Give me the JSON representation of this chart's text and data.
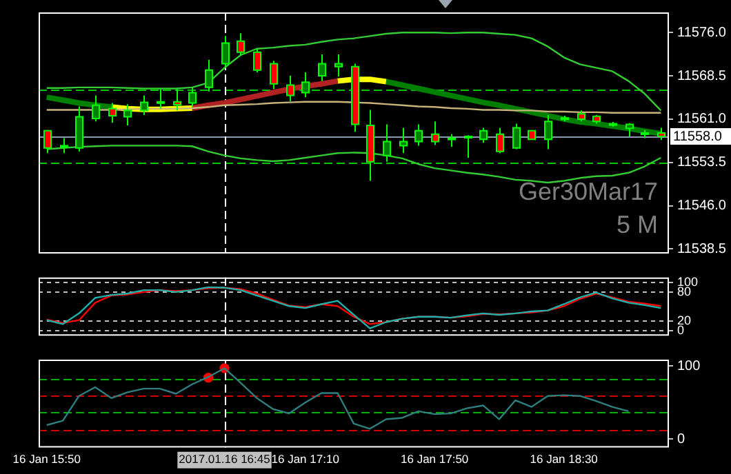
{
  "chart_data": [
    {
      "type": "candlestick",
      "categories": [
        "16 Jan 15:50",
        null,
        null,
        null,
        null,
        null,
        null,
        null,
        null,
        null,
        null,
        "2017.01.16 16:45",
        null,
        null,
        null,
        null,
        "16 Jan 17:10",
        null,
        null,
        null,
        null,
        null,
        null,
        null,
        "16 Jan 17:50",
        null,
        null,
        null,
        null,
        null,
        null,
        null,
        "16 Jan 18:30",
        null,
        null,
        null,
        null,
        null,
        null
      ],
      "ylim": [
        11537.7,
        11579.5
      ],
      "yticks": [
        {
          "value": 11538.5,
          "label": "11538.5"
        },
        {
          "value": 11546,
          "label": "11546.0"
        },
        {
          "value": 11553.5,
          "label": "11553.5"
        },
        {
          "value": 11561,
          "label": "11561.0"
        },
        {
          "value": 11568.5,
          "label": "11568.5"
        },
        {
          "value": 11576,
          "label": "11576.0"
        }
      ],
      "tick_labels": "y",
      "annotations": [
        "Ger30Mar17",
        "5 M"
      ],
      "ref_lines": [
        {
          "axis": "y",
          "value": 11558.0,
          "label": "11558.0",
          "color": "#8a9bb0",
          "line_style": "solid"
        },
        {
          "axis": "y",
          "value": 11566.2,
          "color": "#00c800",
          "line_style": "dashed"
        },
        {
          "axis": "y",
          "value": 11553.5,
          "color": "#00c800",
          "line_style": "dashed"
        },
        {
          "axis": "x",
          "value": "2017.01.16 16:45",
          "color": "#ffffff",
          "line_style": "dashed"
        }
      ],
      "series": [
        {
          "color": "#00ff00",
          "colors": [
            "#ff0000",
            "#008000",
            "#008000",
            "#008000",
            "#ff0000",
            "#008000",
            "#008000",
            "#008000",
            "#ff0000",
            "#008000",
            "#008000",
            "#008000",
            "#ff0000",
            "#ff0000",
            "#ff0000",
            "#ff0000",
            "#008000",
            "#008000",
            "#008000",
            "#ff0000",
            "#ff0000",
            "#008000",
            "#008000",
            "#008000",
            "#ff0000",
            "#008000",
            "#008000",
            "#008000",
            "#ff0000",
            "#008000",
            "#ff0000",
            "#008000",
            "#008000",
            "#ff0000",
            "#ff0000",
            "#ff0000",
            "#008000",
            "#008000",
            "#ff0000"
          ],
          "ohlc": [
            [
              11559.0,
              11559.1,
              11555.1,
              11556.0
            ],
            [
              11556.4,
              11557.7,
              11555.1,
              11556.4
            ],
            [
              11556.0,
              11563.2,
              11555.4,
              11561.4
            ],
            [
              11561.1,
              11565.1,
              11560.6,
              11563.4
            ],
            [
              11562.8,
              11563.8,
              11560.4,
              11561.6
            ],
            [
              11561.4,
              11563.6,
              11559.9,
              11562.5
            ],
            [
              11562.5,
              11565.1,
              11561.7,
              11563.9
            ],
            [
              11563.9,
              11566.2,
              11562.8,
              11564.0
            ],
            [
              11564.0,
              11566.2,
              11562.5,
              11563.5
            ],
            [
              11563.8,
              11566.5,
              11563.2,
              11565.6
            ],
            [
              11566.5,
              11571.3,
              11565.8,
              11569.5
            ],
            [
              11570.6,
              11575.4,
              11569.9,
              11574.2
            ],
            [
              11574.5,
              11575.9,
              11572.1,
              11572.6
            ],
            [
              11572.6,
              11573.2,
              11569.1,
              11569.5
            ],
            [
              11570.6,
              11571.1,
              11566.2,
              11567.1
            ],
            [
              11566.9,
              11568.5,
              11564.1,
              11565.1
            ],
            [
              11565.6,
              11569.1,
              11564.8,
              11567.4
            ],
            [
              11568.5,
              11572.2,
              11567.6,
              11570.6
            ],
            [
              11570.1,
              11572.2,
              11568.4,
              11570.6
            ],
            [
              11570.1,
              11570.6,
              11558.8,
              11560.1
            ],
            [
              11559.9,
              11562.6,
              11550.3,
              11553.6
            ],
            [
              11554.7,
              11560.1,
              11553.6,
              11557.1
            ],
            [
              11556.4,
              11559.5,
              11555.1,
              11557.1
            ],
            [
              11557.1,
              11560.1,
              11556.4,
              11559.0
            ],
            [
              11558.4,
              11560.6,
              11556.5,
              11557.1
            ],
            [
              11557.7,
              11558.4,
              11556.2,
              11557.7
            ],
            [
              11558.0,
              11558.2,
              11554.3,
              11558.0
            ],
            [
              11557.5,
              11559.5,
              11556.9,
              11559.0
            ],
            [
              11558.4,
              11559.5,
              11555.1,
              11555.4
            ],
            [
              11556.0,
              11560.2,
              11555.8,
              11559.5
            ],
            [
              11559.0,
              11559.1,
              11557.4,
              11557.5
            ],
            [
              11557.5,
              11561.7,
              11555.8,
              11560.6
            ],
            [
              11561.0,
              11561.6,
              11560.6,
              11561.2
            ],
            [
              11561.9,
              11562.5,
              11560.6,
              11561.0
            ],
            [
              11561.5,
              11561.7,
              11560.2,
              11560.6
            ],
            [
              11560.2,
              11560.5,
              11559.7,
              11560.0
            ],
            [
              11559.4,
              11560.3,
              11558.0,
              11560.1
            ],
            [
              11558.6,
              11559.1,
              11557.7,
              11558.6
            ],
            [
              11558.6,
              11559.5,
              11557.4,
              11558.0
            ]
          ]
        },
        {
          "type": "line",
          "color": "#33cc33",
          "values": [
            11566.4,
            11566.4,
            11566.5,
            11566.5,
            11566.5,
            11566.4,
            11566.3,
            11566.3,
            11566.3,
            11566.5,
            11567.3,
            11569.9,
            11572.1,
            11573.2,
            11573.4,
            11573.7,
            11573.9,
            11574.4,
            11574.8,
            11575.0,
            11575.4,
            11575.8,
            11576.0,
            11576.0,
            11576.0,
            11575.9,
            11576.0,
            11576.0,
            11575.8,
            11575.6,
            11575.0,
            11573.6,
            11571.7,
            11570.5,
            11569.9,
            11569.3,
            11567.6,
            11565.4,
            11562.5
          ]
        },
        {
          "type": "line",
          "color": "#33cc33",
          "values": [
            11555.8,
            11556.0,
            11556.2,
            11556.3,
            11556.4,
            11556.4,
            11556.4,
            11556.4,
            11556.4,
            11556.3,
            11555.4,
            11554.7,
            11554.2,
            11553.9,
            11553.7,
            11553.9,
            11554.3,
            11554.7,
            11555.1,
            11555.2,
            11555.1,
            11554.7,
            11554.2,
            11553.2,
            11552.5,
            11552.1,
            11551.7,
            11551.4,
            11551.0,
            11550.5,
            11550.3,
            11550.0,
            11550.3,
            11550.8,
            11551.1,
            11551.2,
            11551.7,
            11552.8,
            11554.3
          ]
        },
        {
          "type": "line",
          "color": "#c8b47a",
          "values": [
            11562.6,
            11562.6,
            11562.6,
            11562.6,
            11562.6,
            11562.7,
            11562.8,
            11562.8,
            11562.8,
            11562.9,
            11563.1,
            11563.4,
            11563.5,
            11563.6,
            11563.8,
            11563.9,
            11564.0,
            11564.0,
            11564.0,
            11563.9,
            11563.8,
            11563.6,
            11563.4,
            11563.2,
            11563.1,
            11562.9,
            11562.8,
            11562.6,
            11562.6,
            11562.5,
            11562.5,
            11562.3,
            11562.3,
            11562.2,
            11562.2,
            11562.1,
            11562.1,
            11562.1,
            11562.1
          ]
        },
        {
          "type": "line",
          "color": "#008000",
          "values": [
            11564.8,
            11564.3,
            11563.8,
            11563.4,
            11563.1,
            null,
            null,
            null,
            null,
            null,
            null,
            null,
            null,
            null,
            null,
            null,
            null,
            null,
            null,
            null,
            null,
            null,
            null,
            null,
            null,
            null,
            null,
            null,
            null,
            null,
            null,
            null,
            null,
            null,
            null,
            null,
            null,
            null,
            null
          ]
        },
        {
          "type": "line",
          "color": "#ffff00",
          "values": [
            null,
            null,
            null,
            null,
            11563.1,
            11562.8,
            11562.7,
            11562.7,
            11562.8,
            11562.9,
            null,
            null,
            null,
            null,
            null,
            null,
            null,
            null,
            null,
            null,
            null,
            null,
            null,
            null,
            null,
            null,
            null,
            null,
            null,
            null,
            null,
            null,
            null,
            null,
            null,
            null,
            null,
            null,
            null
          ]
        },
        {
          "type": "line",
          "color": "#b22222",
          "values": [
            null,
            null,
            null,
            null,
            null,
            null,
            null,
            null,
            null,
            11562.9,
            11563.4,
            11563.8,
            11564.4,
            11565.0,
            11565.6,
            11566.2,
            11566.7,
            11567.1,
            11567.6,
            null,
            null,
            null,
            null,
            null,
            null,
            null,
            null,
            null,
            null,
            null,
            null,
            null,
            null,
            null,
            null,
            null,
            null,
            null,
            null
          ]
        },
        {
          "type": "line",
          "color": "#ffff00",
          "values": [
            null,
            null,
            null,
            null,
            null,
            null,
            null,
            null,
            null,
            null,
            null,
            null,
            null,
            null,
            null,
            null,
            null,
            null,
            11567.6,
            11567.9,
            11567.9,
            11567.5,
            null,
            null,
            null,
            null,
            null,
            null,
            null,
            null,
            null,
            null,
            null,
            null,
            null,
            null,
            null,
            null,
            null
          ]
        },
        {
          "type": "line",
          "color": "#008000",
          "values": [
            null,
            null,
            null,
            null,
            null,
            null,
            null,
            null,
            null,
            null,
            null,
            null,
            null,
            null,
            null,
            null,
            null,
            null,
            null,
            null,
            null,
            11567.5,
            11566.9,
            11566.3,
            11565.7,
            11565.1,
            11564.5,
            11563.9,
            11563.4,
            11562.8,
            11562.2,
            11561.6,
            11561.0,
            11560.5,
            11560.2,
            11559.8,
            11559.4,
            11558.9,
            11558.5
          ]
        }
      ]
    },
    {
      "type": "line",
      "categories": [
        "16 Jan 15:50",
        null,
        null,
        null,
        null,
        null,
        null,
        null,
        null,
        null,
        null,
        "2017.01.16 16:45",
        null,
        null,
        null,
        null,
        "16 Jan 17:10",
        null,
        null,
        null,
        null,
        null,
        null,
        null,
        "16 Jan 17:50",
        null,
        null,
        null,
        null,
        null,
        null,
        null,
        "16 Jan 18:30",
        null,
        null,
        null,
        null,
        null,
        null
      ],
      "ylim": [
        -10,
        110
      ],
      "yticks": [
        0,
        20,
        80,
        100
      ],
      "grid": "y",
      "tick_labels": "y",
      "ref_lines": [
        {
          "axis": "x",
          "value": "2017.01.16 16:45",
          "color": "#ffffff",
          "line_style": "dashed"
        }
      ],
      "series": [
        {
          "color": "#20b2aa",
          "values": [
            22,
            14,
            36,
            68,
            74,
            77,
            84,
            84,
            80,
            84,
            90,
            89,
            84,
            73,
            62,
            51,
            47,
            55,
            62,
            33,
            5,
            18,
            25,
            29,
            29,
            27,
            32,
            36,
            33,
            36,
            40,
            42,
            55,
            69,
            79,
            67,
            58,
            53,
            47
          ]
        },
        {
          "color": "#ff0000",
          "values": [
            23,
            16,
            22,
            58,
            73,
            75,
            80,
            84,
            82,
            84,
            88,
            89,
            86,
            77,
            64,
            52,
            49,
            55,
            51,
            29,
            14,
            18,
            25,
            29,
            29,
            27,
            30,
            35,
            34,
            36,
            38,
            42,
            51,
            66,
            77,
            69,
            60,
            56,
            51
          ]
        }
      ]
    },
    {
      "type": "line",
      "categories": [
        "16 Jan 15:50",
        null,
        null,
        null,
        null,
        null,
        null,
        null,
        null,
        null,
        null,
        "2017.01.16 16:45",
        null,
        null,
        null,
        null,
        "16 Jan 17:10",
        null,
        null,
        null,
        null,
        null,
        null,
        null,
        "16 Jan 17:50",
        null,
        null,
        null,
        null,
        null,
        null,
        null,
        "16 Jan 18:30",
        null,
        null,
        null,
        null,
        null,
        null
      ],
      "ylim": [
        -11.8,
        108.8
      ],
      "yticks": [
        0,
        100
      ],
      "ref_lines": [
        {
          "axis": "y",
          "value": 82,
          "color": "#00b000",
          "line_style": "dashed"
        },
        {
          "axis": "y",
          "value": 60,
          "color": "#d00000",
          "line_style": "dashed"
        },
        {
          "axis": "y",
          "value": 37,
          "color": "#00b000",
          "line_style": "dashed"
        },
        {
          "axis": "y",
          "value": 13,
          "color": "#d00000",
          "line_style": "dashed"
        },
        {
          "axis": "x",
          "value": "2017.01.16 16:45",
          "color": "#ffffff",
          "line_style": "dashed"
        }
      ],
      "series": [
        {
          "color": "#2f7f7f",
          "values": [
            19,
            25,
            59,
            71,
            56,
            64,
            69,
            69,
            62,
            75,
            85,
            97,
            77,
            56,
            41,
            35,
            50,
            63,
            63,
            21,
            14,
            27,
            29,
            38,
            34,
            35,
            42,
            46,
            27,
            53,
            44,
            59,
            60,
            59,
            52,
            44,
            38,
            null,
            null
          ]
        },
        {
          "type": "scatter",
          "color": "#ff0000",
          "values": [
            null,
            null,
            null,
            null,
            null,
            null,
            null,
            null,
            null,
            null,
            84,
            97,
            null,
            null,
            null,
            null,
            null,
            null,
            null,
            null,
            null,
            null,
            null,
            null,
            null,
            null,
            null,
            null,
            null,
            null,
            null,
            null,
            null,
            null,
            null,
            null,
            null,
            null,
            null
          ]
        }
      ]
    }
  ]
}
